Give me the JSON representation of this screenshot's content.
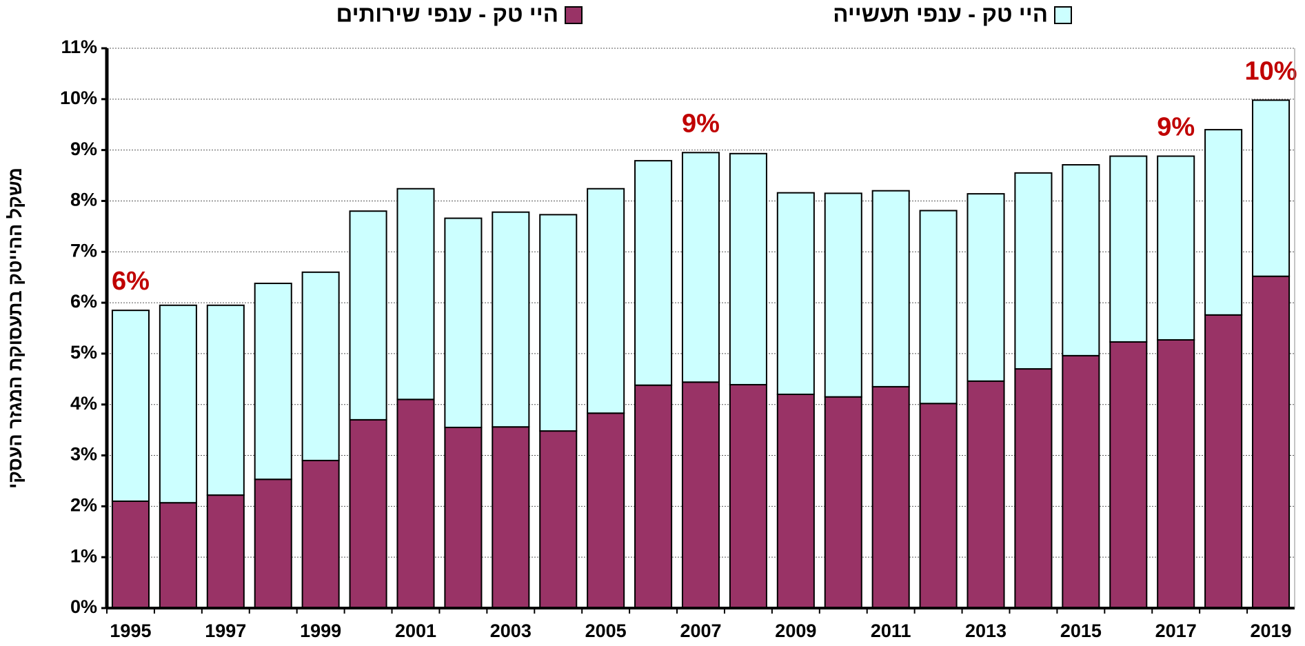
{
  "chart_data": {
    "type": "stacked_bar",
    "ylabel": "משקל ההייטק בתעסוקת המגזר העסקי",
    "categories": [
      "1995",
      null,
      "1997",
      null,
      "1999",
      null,
      "2001",
      null,
      "2003",
      null,
      "2005",
      null,
      "2007",
      null,
      "2009",
      null,
      "2011",
      null,
      "2013",
      null,
      "2015",
      null,
      "2017",
      null,
      "2019"
    ],
    "series": [
      {
        "name": "היי טק - ענפי שירותים",
        "color": "#993366",
        "values": [
          2.1,
          2.07,
          2.22,
          2.53,
          2.9,
          3.7,
          4.1,
          3.55,
          3.56,
          3.48,
          3.83,
          4.38,
          4.44,
          4.39,
          4.2,
          4.15,
          4.35,
          4.02,
          4.46,
          4.7,
          4.96,
          5.23,
          5.27,
          5.76,
          6.52
        ]
      },
      {
        "name": "היי טק - ענפי תעשייה",
        "color": "#ccffff",
        "values": [
          3.75,
          3.88,
          3.73,
          3.85,
          3.7,
          4.1,
          4.14,
          4.11,
          4.22,
          4.25,
          4.41,
          4.41,
          4.51,
          4.54,
          3.96,
          4.0,
          3.85,
          3.79,
          3.68,
          3.85,
          3.75,
          3.65,
          3.61,
          3.64,
          3.46
        ]
      }
    ],
    "annotations": [
      {
        "text": "6%",
        "category": "1995"
      },
      {
        "text": "9%",
        "category": "2007"
      },
      {
        "text": "9%",
        "category": "2017"
      },
      {
        "text": "10%",
        "category": "2019"
      }
    ],
    "annotation_color": "#c00000",
    "ylim": [
      0,
      11
    ],
    "yticks": [
      {
        "value": 0,
        "label": "0%"
      },
      {
        "value": 1,
        "label": "1%"
      },
      {
        "value": 2,
        "label": "2%"
      },
      {
        "value": 3,
        "label": "3%"
      },
      {
        "value": 4,
        "label": "4%"
      },
      {
        "value": 5,
        "label": "5%"
      },
      {
        "value": 6,
        "label": "6%"
      },
      {
        "value": 7,
        "label": "7%"
      },
      {
        "value": 8,
        "label": "8%"
      },
      {
        "value": 9,
        "label": "9%"
      },
      {
        "value": 10,
        "label": "10%"
      },
      {
        "value": 11,
        "label": "11%"
      }
    ],
    "grid": true
  }
}
